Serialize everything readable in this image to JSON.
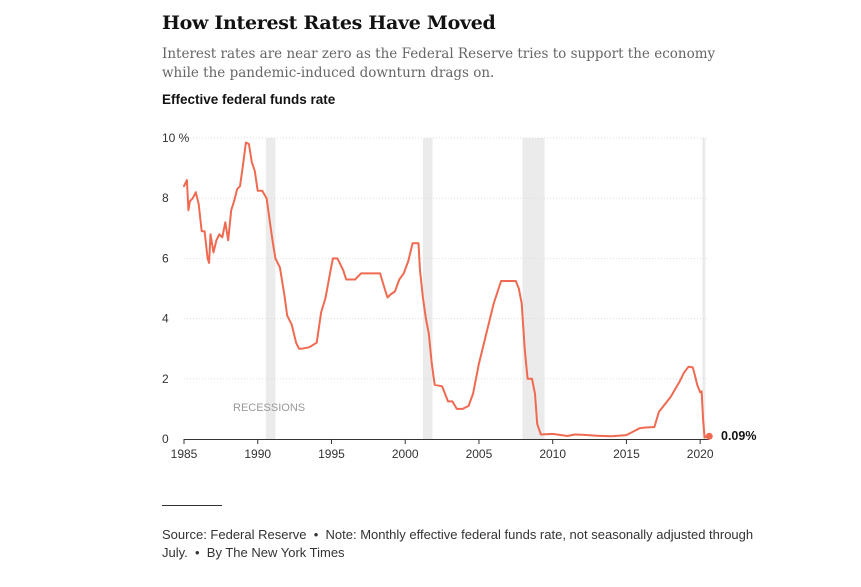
{
  "header": {
    "title": "How Interest Rates Have Moved",
    "subtitle": "Interest rates are near zero as the Federal Reserve tries to support the economy while the pandemic-induced downturn drags on.",
    "chart_label": "Effective federal funds rate"
  },
  "footer": {
    "source_prefix": "Source: Federal Reserve",
    "note": "Note: Monthly effective federal funds rate, not seasonally adjusted through July.",
    "byline": "By The New York Times",
    "separator": "•"
  },
  "colors": {
    "line": "#ef6a50",
    "recession_band": "#ebebeb",
    "axis": "#333333",
    "grid": "#dddddd"
  },
  "chart_data": {
    "type": "line",
    "title": "Effective federal funds rate",
    "xlabel": "",
    "ylabel": "",
    "xlim": [
      1985,
      2020.6
    ],
    "ylim": [
      0,
      10
    ],
    "grid": true,
    "xticks": [
      1985,
      1990,
      1995,
      2000,
      2005,
      2010,
      2015,
      2020
    ],
    "xtick_labels": [
      "1985",
      "1990",
      "1995",
      "2000",
      "2005",
      "2010",
      "2015",
      "2020"
    ],
    "yticks": [
      0,
      2,
      4,
      6,
      8,
      10
    ],
    "ytick_labels": [
      "0",
      "2",
      "4",
      "6",
      "8",
      "10 %"
    ],
    "recession_label": "RECESSIONS",
    "recessions": [
      [
        1990.55,
        1991.2
      ],
      [
        2001.2,
        2001.85
      ],
      [
        2007.95,
        2009.45
      ],
      [
        2020.15,
        2020.35
      ]
    ],
    "end_label": "0.09%",
    "series": [
      {
        "name": "Effective federal funds rate",
        "x": [
          1985,
          1985.2,
          1985.3,
          1985.4,
          1985.6,
          1985.8,
          1986,
          1986.2,
          1986.4,
          1986.6,
          1986.7,
          1986.8,
          1987,
          1987.2,
          1987.4,
          1987.6,
          1987.8,
          1988,
          1988.2,
          1988.4,
          1988.6,
          1988.8,
          1989,
          1989.2,
          1989.4,
          1989.6,
          1989.8,
          1990,
          1990.3,
          1990.6,
          1990.8,
          1991,
          1991.2,
          1991.5,
          1991.8,
          1992,
          1992.3,
          1992.6,
          1992.8,
          1993,
          1993.5,
          1994,
          1994.3,
          1994.6,
          1994.9,
          1995.1,
          1995.4,
          1995.8,
          1996,
          1996.3,
          1996.6,
          1997,
          1997.3,
          1997.6,
          1998,
          1998.3,
          1998.6,
          1998.8,
          1999,
          1999.3,
          1999.6,
          1999.9,
          2000.2,
          2000.5,
          2000.9,
          2001,
          2001.2,
          2001.4,
          2001.6,
          2001.8,
          2002,
          2002.5,
          2002.9,
          2003.2,
          2003.5,
          2003.9,
          2004.3,
          2004.6,
          2005,
          2005.5,
          2006,
          2006.5,
          2006.7,
          2007,
          2007.5,
          2007.7,
          2007.9,
          2008.1,
          2008.3,
          2008.6,
          2008.8,
          2008.95,
          2009.2,
          2010,
          2011,
          2011.5,
          2012,
          2013,
          2014,
          2015,
          2015.9,
          2016.2,
          2016.9,
          2017.2,
          2017.6,
          2018,
          2018.3,
          2018.6,
          2018.9,
          2019.2,
          2019.5,
          2019.65,
          2019.8,
          2020,
          2020.1,
          2020.2,
          2020.3,
          2020.45,
          2020.55
        ],
        "values": [
          8.4,
          8.6,
          7.6,
          7.9,
          8.0,
          8.2,
          7.8,
          6.9,
          6.9,
          6.0,
          5.85,
          6.8,
          6.2,
          6.6,
          6.8,
          6.7,
          7.2,
          6.6,
          7.6,
          7.9,
          8.3,
          8.4,
          9.1,
          9.85,
          9.8,
          9.2,
          8.9,
          8.25,
          8.25,
          8.0,
          7.3,
          6.6,
          6.0,
          5.7,
          4.8,
          4.1,
          3.8,
          3.2,
          3.0,
          3.0,
          3.05,
          3.2,
          4.2,
          4.7,
          5.5,
          6.0,
          6.0,
          5.6,
          5.3,
          5.3,
          5.3,
          5.5,
          5.5,
          5.5,
          5.5,
          5.5,
          5.0,
          4.7,
          4.8,
          4.9,
          5.3,
          5.5,
          5.9,
          6.5,
          6.5,
          5.6,
          4.7,
          4.0,
          3.5,
          2.5,
          1.8,
          1.75,
          1.25,
          1.25,
          1.0,
          1.0,
          1.1,
          1.5,
          2.5,
          3.5,
          4.5,
          5.25,
          5.25,
          5.25,
          5.25,
          5.0,
          4.5,
          3.0,
          2.0,
          2.0,
          1.5,
          0.5,
          0.15,
          0.17,
          0.1,
          0.15,
          0.14,
          0.11,
          0.09,
          0.13,
          0.36,
          0.38,
          0.4,
          0.9,
          1.15,
          1.4,
          1.65,
          1.9,
          2.2,
          2.4,
          2.38,
          2.1,
          1.8,
          1.55,
          1.58,
          0.65,
          0.05,
          0.09,
          0.09
        ]
      }
    ]
  }
}
